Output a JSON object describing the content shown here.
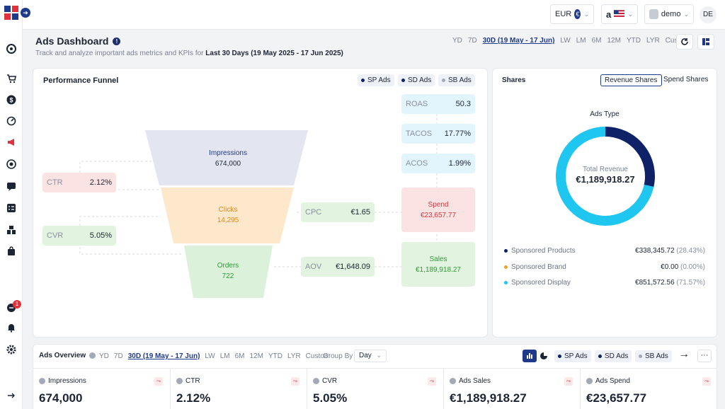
{
  "topbar": {
    "currency": "EUR",
    "currency_symbol": "€",
    "marketplace_logo": "a",
    "user": "demo",
    "language": "DE"
  },
  "header": {
    "title": "Ads Dashboard",
    "subtitle_prefix": "Track and analyze important ads metrics and KPIs for",
    "subtitle_range": "Last 30 Days (19 May 2025 - 17 Jun 2025)",
    "periods": [
      "YD",
      "7D",
      "30D (19 May - 17 Jun)",
      "LW",
      "LM",
      "6M",
      "12M",
      "YTD",
      "LYR",
      "Custom"
    ],
    "active_period": "30D (19 May - 17 Jun)"
  },
  "funnel": {
    "title": "Performance Funnel",
    "chips": [
      "SP Ads",
      "SD Ads",
      "SB Ads"
    ],
    "impressions": {
      "label": "Impressions",
      "value": "674,000"
    },
    "clicks": {
      "label": "Clicks",
      "value": "14,295"
    },
    "orders": {
      "label": "Orders",
      "value": "722"
    },
    "ctr": {
      "label": "CTR",
      "value": "2.12%"
    },
    "cvr": {
      "label": "CVR",
      "value": "5.05%"
    },
    "cpc": {
      "label": "CPC",
      "value": "€1.65"
    },
    "aov": {
      "label": "AOV",
      "value": "€1,648.09"
    },
    "roas": {
      "label": "ROAS",
      "value": "50.3"
    },
    "tacos": {
      "label": "TACOS",
      "value": "17.77%"
    },
    "acos": {
      "label": "ACOS",
      "value": "1.99%"
    },
    "spend": {
      "label": "Spend",
      "value": "€23,657.77"
    },
    "sales": {
      "label": "Sales",
      "value": "€1,189,918.27"
    }
  },
  "shares": {
    "title": "Shares",
    "tabs": [
      "Revenue Shares",
      "Spend Shares"
    ],
    "active_tab": "Revenue Shares",
    "chart_title": "Ads Type",
    "center_label": "Total Revenue",
    "center_value": "€1,189,918.27",
    "legend": [
      {
        "name": "Sponsored Products",
        "value": "€338,345.72",
        "pct": "(28.43%)",
        "color": "#0f2167"
      },
      {
        "name": "Sponsored Brand",
        "value": "€0.00",
        "pct": "(0.00%)",
        "color": "#f0a030"
      },
      {
        "name": "Sponsored Display",
        "value": "€851,572.56",
        "pct": "(71.57%)",
        "color": "#1ec6f0"
      }
    ]
  },
  "chart_data": {
    "type": "pie",
    "title": "Ads Type",
    "categories": [
      "Sponsored Products",
      "Sponsored Brand",
      "Sponsored Display"
    ],
    "values": [
      28.43,
      0.0,
      71.57
    ],
    "colors": [
      "#0f2167",
      "#f0a030",
      "#1ec6f0"
    ]
  },
  "overview": {
    "title": "Ads Overview",
    "periods": [
      "YD",
      "7D",
      "30D (19 May - 17 Jun)",
      "LW",
      "LM",
      "6M",
      "12M",
      "YTD",
      "LYR",
      "Custom"
    ],
    "active_period": "30D (19 May - 17 Jun)",
    "group_by_label": "Group By",
    "group_by_value": "Day",
    "chips": [
      "SP Ads",
      "SD Ads",
      "SB Ads"
    ],
    "kpis": [
      {
        "label": "Impressions",
        "value": "674,000"
      },
      {
        "label": "CTR",
        "value": "2.12%"
      },
      {
        "label": "CVR",
        "value": "5.05%"
      },
      {
        "label": "Ads Sales",
        "value": "€1,189,918.27"
      },
      {
        "label": "Ads Spend",
        "value": "€23,657.77"
      }
    ]
  },
  "colors": {
    "brand": "#1f3a8a",
    "impressions_fill": "#e3e6f1",
    "clicks_fill": "#fde8cc",
    "orders_fill": "#dcf1d9",
    "ratio_fill": "#e3f5fc",
    "spend_fill": "#fbe3e4",
    "sales_fill": "#e2f3df"
  }
}
